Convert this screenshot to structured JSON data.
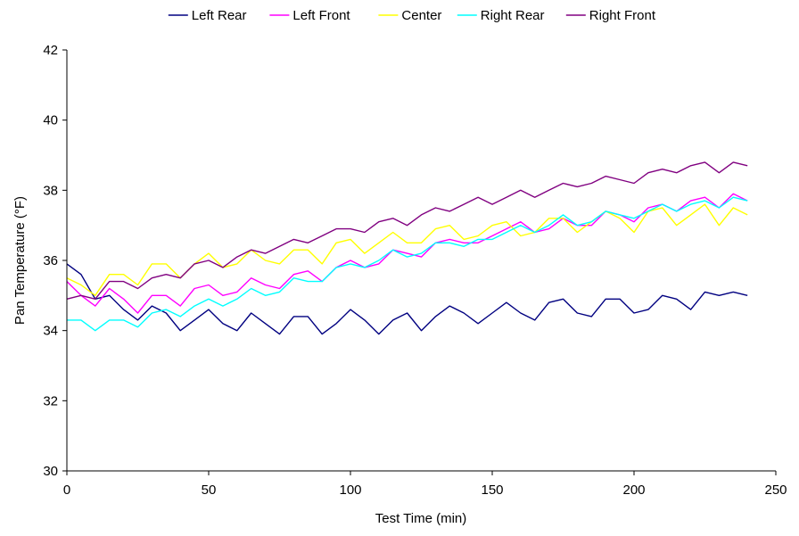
{
  "chart_data": {
    "type": "line",
    "title": "",
    "xlabel": "Test Time (min)",
    "ylabel": "Pan Temperature (°F)",
    "xlim": [
      0,
      250
    ],
    "ylim": [
      30,
      42
    ],
    "xticks": [
      0,
      50,
      100,
      150,
      200,
      250
    ],
    "yticks": [
      30,
      32,
      34,
      36,
      38,
      40,
      42
    ],
    "grid": false,
    "legend_position": "top",
    "series": [
      {
        "name": "Left Rear",
        "color": "#000080",
        "x": [
          0,
          5,
          10,
          15,
          20,
          25,
          30,
          35,
          40,
          45,
          50,
          55,
          60,
          65,
          70,
          75,
          80,
          85,
          90,
          95,
          100,
          105,
          110,
          115,
          120,
          125,
          130,
          135,
          140,
          145,
          150,
          155,
          160,
          165,
          170,
          175,
          180,
          185,
          190,
          195,
          200,
          205,
          210,
          215,
          220,
          225,
          230,
          235,
          240
        ],
        "y": [
          35.9,
          35.6,
          34.9,
          35.0,
          34.6,
          34.3,
          34.7,
          34.5,
          34.0,
          34.3,
          34.6,
          34.2,
          34.0,
          34.5,
          34.2,
          33.9,
          34.4,
          34.4,
          33.9,
          34.2,
          34.6,
          34.3,
          33.9,
          34.3,
          34.5,
          34.0,
          34.4,
          34.7,
          34.5,
          34.2,
          34.5,
          34.8,
          34.5,
          34.3,
          34.8,
          34.9,
          34.5,
          34.4,
          34.9,
          34.9,
          34.5,
          34.6,
          35.0,
          34.9,
          34.6,
          35.1,
          35.0,
          35.1,
          35.0
        ]
      },
      {
        "name": "Left Front",
        "color": "#ff00ff",
        "x": [
          0,
          5,
          10,
          15,
          20,
          25,
          30,
          35,
          40,
          45,
          50,
          55,
          60,
          65,
          70,
          75,
          80,
          85,
          90,
          95,
          100,
          105,
          110,
          115,
          120,
          125,
          130,
          135,
          140,
          145,
          150,
          155,
          160,
          165,
          170,
          175,
          180,
          185,
          190,
          195,
          200,
          205,
          210,
          215,
          220,
          225,
          230,
          235,
          240
        ],
        "y": [
          35.4,
          35.0,
          34.7,
          35.2,
          34.9,
          34.5,
          35.0,
          35.0,
          34.7,
          35.2,
          35.3,
          35.0,
          35.1,
          35.5,
          35.3,
          35.2,
          35.6,
          35.7,
          35.4,
          35.8,
          36.0,
          35.8,
          35.9,
          36.3,
          36.2,
          36.1,
          36.5,
          36.6,
          36.5,
          36.5,
          36.7,
          36.9,
          37.1,
          36.8,
          36.9,
          37.2,
          37.0,
          37.0,
          37.4,
          37.3,
          37.1,
          37.5,
          37.6,
          37.4,
          37.7,
          37.8,
          37.5,
          37.9,
          37.7
        ]
      },
      {
        "name": "Center",
        "color": "#ffff00",
        "x": [
          0,
          5,
          10,
          15,
          20,
          25,
          30,
          35,
          40,
          45,
          50,
          55,
          60,
          65,
          70,
          75,
          80,
          85,
          90,
          95,
          100,
          105,
          110,
          115,
          120,
          125,
          130,
          135,
          140,
          145,
          150,
          155,
          160,
          165,
          170,
          175,
          180,
          185,
          190,
          195,
          200,
          205,
          210,
          215,
          220,
          225,
          230,
          235,
          240
        ],
        "y": [
          35.5,
          35.3,
          35.0,
          35.6,
          35.6,
          35.3,
          35.9,
          35.9,
          35.5,
          35.9,
          36.2,
          35.8,
          35.9,
          36.3,
          36.0,
          35.9,
          36.3,
          36.3,
          35.9,
          36.5,
          36.6,
          36.2,
          36.5,
          36.8,
          36.5,
          36.5,
          36.9,
          37.0,
          36.6,
          36.7,
          37.0,
          37.1,
          36.7,
          36.8,
          37.2,
          37.2,
          36.8,
          37.1,
          37.4,
          37.2,
          36.8,
          37.4,
          37.5,
          37.0,
          37.3,
          37.6,
          37.0,
          37.5,
          37.3
        ]
      },
      {
        "name": "Right Rear",
        "color": "#00ffff",
        "x": [
          0,
          5,
          10,
          15,
          20,
          25,
          30,
          35,
          40,
          45,
          50,
          55,
          60,
          65,
          70,
          75,
          80,
          85,
          90,
          95,
          100,
          105,
          110,
          115,
          120,
          125,
          130,
          135,
          140,
          145,
          150,
          155,
          160,
          165,
          170,
          175,
          180,
          185,
          190,
          195,
          200,
          205,
          210,
          215,
          220,
          225,
          230,
          235,
          240
        ],
        "y": [
          34.3,
          34.3,
          34.0,
          34.3,
          34.3,
          34.1,
          34.5,
          34.6,
          34.4,
          34.7,
          34.9,
          34.7,
          34.9,
          35.2,
          35.0,
          35.1,
          35.5,
          35.4,
          35.4,
          35.8,
          35.9,
          35.8,
          36.0,
          36.3,
          36.1,
          36.2,
          36.5,
          36.5,
          36.4,
          36.6,
          36.6,
          36.8,
          37.0,
          36.8,
          37.0,
          37.3,
          37.0,
          37.1,
          37.4,
          37.3,
          37.2,
          37.4,
          37.6,
          37.4,
          37.6,
          37.7,
          37.5,
          37.8,
          37.7
        ]
      },
      {
        "name": "Right Front",
        "color": "#800080",
        "x": [
          0,
          5,
          10,
          15,
          20,
          25,
          30,
          35,
          40,
          45,
          50,
          55,
          60,
          65,
          70,
          75,
          80,
          85,
          90,
          95,
          100,
          105,
          110,
          115,
          120,
          125,
          130,
          135,
          140,
          145,
          150,
          155,
          160,
          165,
          170,
          175,
          180,
          185,
          190,
          195,
          200,
          205,
          210,
          215,
          220,
          225,
          230,
          235,
          240
        ],
        "y": [
          34.9,
          35.0,
          34.9,
          35.4,
          35.4,
          35.2,
          35.5,
          35.6,
          35.5,
          35.9,
          36.0,
          35.8,
          36.1,
          36.3,
          36.2,
          36.4,
          36.6,
          36.5,
          36.7,
          36.9,
          36.9,
          36.8,
          37.1,
          37.2,
          37.0,
          37.3,
          37.5,
          37.4,
          37.6,
          37.8,
          37.6,
          37.8,
          38.0,
          37.8,
          38.0,
          38.2,
          38.1,
          38.2,
          38.4,
          38.3,
          38.2,
          38.5,
          38.6,
          38.5,
          38.7,
          38.8,
          38.5,
          38.8,
          38.7
        ]
      }
    ]
  }
}
